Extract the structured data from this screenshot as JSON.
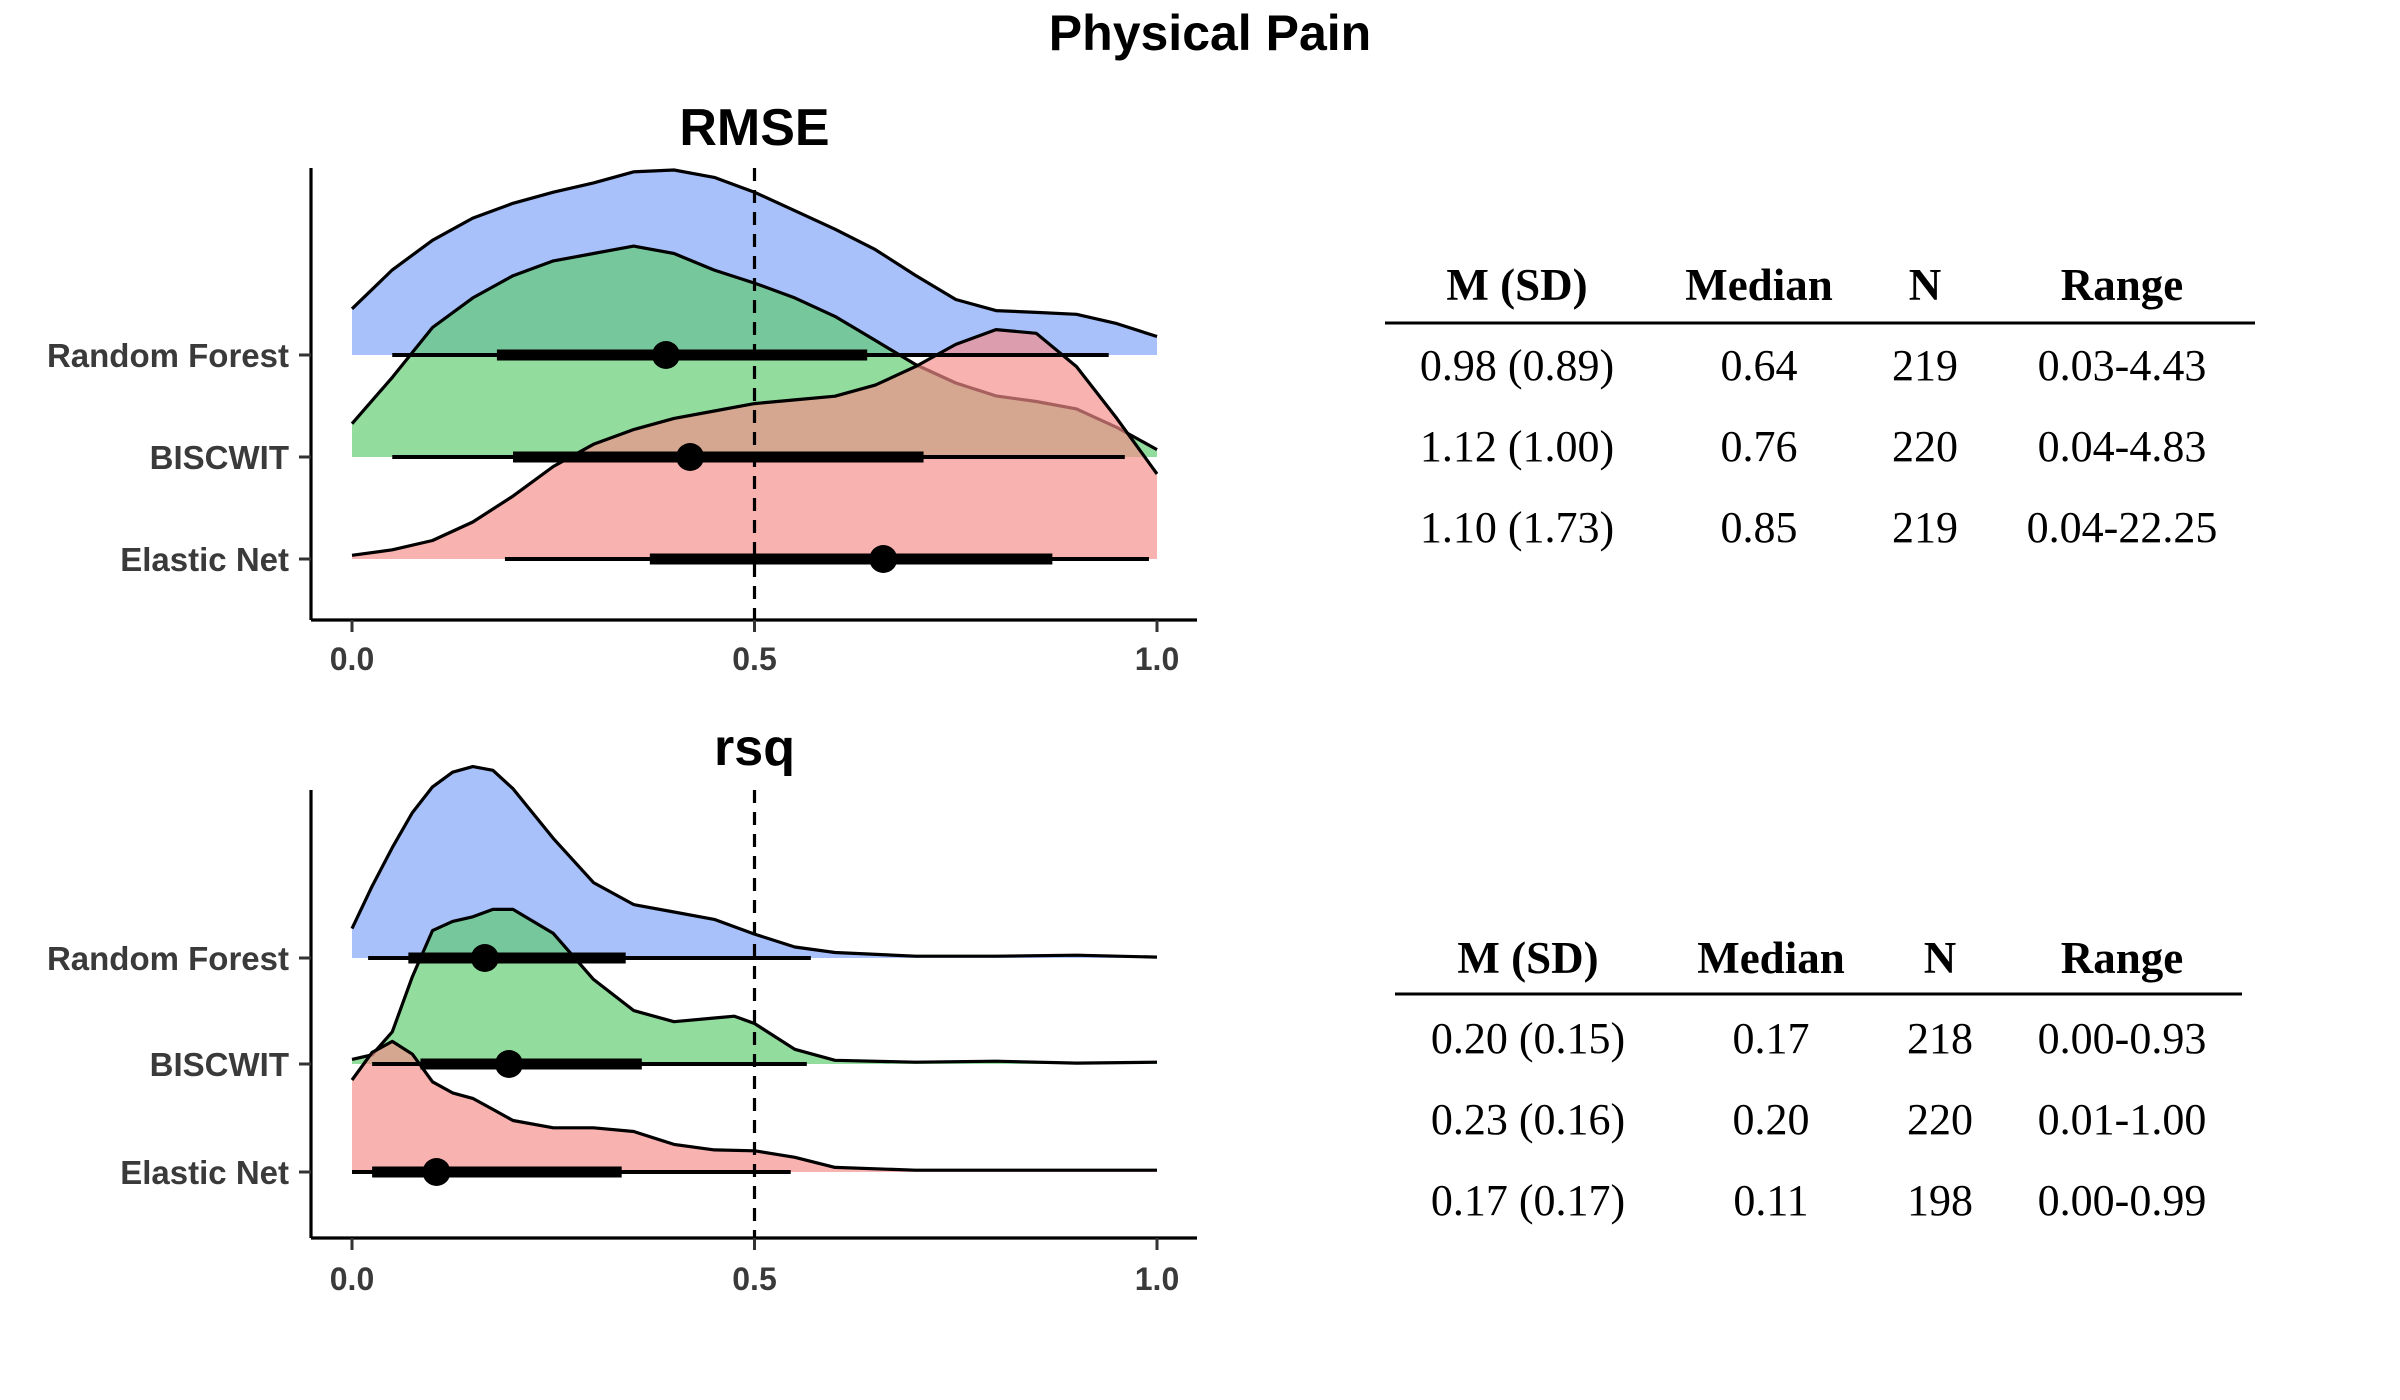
{
  "title": "Physical Pain",
  "colors": {
    "Random Forest": "#7fa4f8",
    "BISCWIT": "#5fcc6e",
    "Elastic Net": "#f58e8b"
  },
  "chart_data": [
    {
      "type": "ridgeline",
      "title": "RMSE",
      "xlim": [
        0,
        1
      ],
      "xticks": [
        "0.0",
        "0.5",
        "1.0"
      ],
      "reference_line": 0.5,
      "grid": false,
      "categories": [
        "Random Forest",
        "BISCWIT",
        "Elastic Net"
      ],
      "series": [
        {
          "name": "Random Forest",
          "density_x": [
            0,
            0.05,
            0.1,
            0.15,
            0.2,
            0.25,
            0.3,
            0.35,
            0.4,
            0.45,
            0.5,
            0.55,
            0.6,
            0.65,
            0.7,
            0.75,
            0.8,
            0.85,
            0.9,
            0.95,
            1.0
          ],
          "density_y": [
            0.25,
            0.46,
            0.62,
            0.74,
            0.82,
            0.88,
            0.93,
            0.99,
            1.0,
            0.96,
            0.88,
            0.78,
            0.68,
            0.57,
            0.43,
            0.3,
            0.24,
            0.23,
            0.22,
            0.17,
            0.1
          ],
          "point": 0.39,
          "interval_66": [
            0.18,
            0.64
          ],
          "interval_95": [
            0.05,
            0.94
          ]
        },
        {
          "name": "BISCWIT",
          "density_x": [
            0,
            0.05,
            0.1,
            0.15,
            0.2,
            0.25,
            0.3,
            0.35,
            0.4,
            0.45,
            0.5,
            0.55,
            0.6,
            0.65,
            0.7,
            0.75,
            0.8,
            0.85,
            0.9,
            0.95,
            1.0
          ],
          "density_y": [
            0.18,
            0.43,
            0.7,
            0.86,
            0.98,
            1.06,
            1.1,
            1.14,
            1.1,
            1.01,
            0.94,
            0.86,
            0.76,
            0.63,
            0.5,
            0.4,
            0.33,
            0.3,
            0.26,
            0.16,
            0.04
          ],
          "point": 0.42,
          "interval_66": [
            0.2,
            0.71
          ],
          "interval_95": [
            0.05,
            0.96
          ]
        },
        {
          "name": "Elastic Net",
          "density_x": [
            0,
            0.05,
            0.1,
            0.15,
            0.2,
            0.25,
            0.3,
            0.35,
            0.4,
            0.45,
            0.5,
            0.55,
            0.6,
            0.65,
            0.7,
            0.75,
            0.8,
            0.85,
            0.9,
            0.95,
            1.0
          ],
          "density_y": [
            0.02,
            0.05,
            0.1,
            0.2,
            0.34,
            0.5,
            0.62,
            0.7,
            0.76,
            0.8,
            0.84,
            0.86,
            0.88,
            0.94,
            1.04,
            1.16,
            1.24,
            1.22,
            1.04,
            0.76,
            0.46
          ],
          "point": 0.66,
          "interval_66": [
            0.37,
            0.87
          ],
          "interval_95": [
            0.19,
            0.99
          ]
        }
      ]
    },
    {
      "type": "ridgeline",
      "title": "rsq",
      "xlim": [
        0,
        1
      ],
      "xticks": [
        "0.0",
        "0.5",
        "1.0"
      ],
      "reference_line": 0.5,
      "grid": false,
      "categories": [
        "Random Forest",
        "BISCWIT",
        "Elastic Net"
      ],
      "series": [
        {
          "name": "Random Forest",
          "density_x": [
            0,
            0.025,
            0.05,
            0.075,
            0.1,
            0.125,
            0.15,
            0.175,
            0.2,
            0.25,
            0.3,
            0.35,
            0.4,
            0.45,
            0.5,
            0.55,
            0.6,
            0.7,
            0.8,
            0.9,
            1.0
          ],
          "density_y": [
            0.32,
            0.78,
            1.2,
            1.58,
            1.86,
            2.02,
            2.08,
            2.04,
            1.84,
            1.3,
            0.82,
            0.58,
            0.5,
            0.42,
            0.26,
            0.12,
            0.06,
            0.02,
            0.02,
            0.03,
            0.01
          ],
          "point": 0.165,
          "interval_66": [
            0.07,
            0.34
          ],
          "interval_95": [
            0.02,
            0.57
          ]
        },
        {
          "name": "BISCWIT",
          "density_x": [
            0,
            0.025,
            0.05,
            0.075,
            0.1,
            0.125,
            0.15,
            0.175,
            0.2,
            0.25,
            0.3,
            0.35,
            0.4,
            0.45,
            0.475,
            0.5,
            0.55,
            0.6,
            0.7,
            0.8,
            0.9,
            1.0
          ],
          "density_y": [
            0.05,
            0.1,
            0.35,
            0.95,
            1.45,
            1.55,
            1.6,
            1.68,
            1.68,
            1.42,
            0.92,
            0.58,
            0.46,
            0.5,
            0.52,
            0.44,
            0.16,
            0.04,
            0.02,
            0.03,
            0.01,
            0.02
          ],
          "point": 0.195,
          "interval_66": [
            0.085,
            0.36
          ],
          "interval_95": [
            0.025,
            0.565
          ]
        },
        {
          "name": "Elastic Net",
          "density_x": [
            0,
            0.025,
            0.05,
            0.075,
            0.1,
            0.125,
            0.15,
            0.175,
            0.2,
            0.25,
            0.3,
            0.35,
            0.4,
            0.45,
            0.5,
            0.55,
            0.6,
            0.7,
            0.8,
            0.9,
            1.0
          ],
          "density_y": [
            1.0,
            1.3,
            1.42,
            1.28,
            0.98,
            0.86,
            0.8,
            0.68,
            0.56,
            0.48,
            0.48,
            0.44,
            0.3,
            0.24,
            0.23,
            0.16,
            0.05,
            0.02,
            0.02,
            0.02,
            0.02
          ],
          "point": 0.105,
          "interval_66": [
            0.025,
            0.335
          ],
          "interval_95": [
            0.0,
            0.545
          ]
        }
      ]
    }
  ],
  "tables": [
    {
      "headers": [
        "M (SD)",
        "Median",
        "N",
        "Range"
      ],
      "rows": [
        [
          "0.98 (0.89)",
          "0.64",
          "219",
          "0.03-4.43"
        ],
        [
          "1.12 (1.00)",
          "0.76",
          "220",
          "0.04-4.83"
        ],
        [
          "1.10 (1.73)",
          "0.85",
          "219",
          "0.04-22.25"
        ]
      ]
    },
    {
      "headers": [
        "M (SD)",
        "Median",
        "N",
        "Range"
      ],
      "rows": [
        [
          "0.20 (0.15)",
          "0.17",
          "218",
          "0.00-0.93"
        ],
        [
          "0.23 (0.16)",
          "0.20",
          "220",
          "0.01-1.00"
        ],
        [
          "0.17 (0.17)",
          "0.11",
          "198",
          "0.00-0.99"
        ]
      ]
    }
  ]
}
